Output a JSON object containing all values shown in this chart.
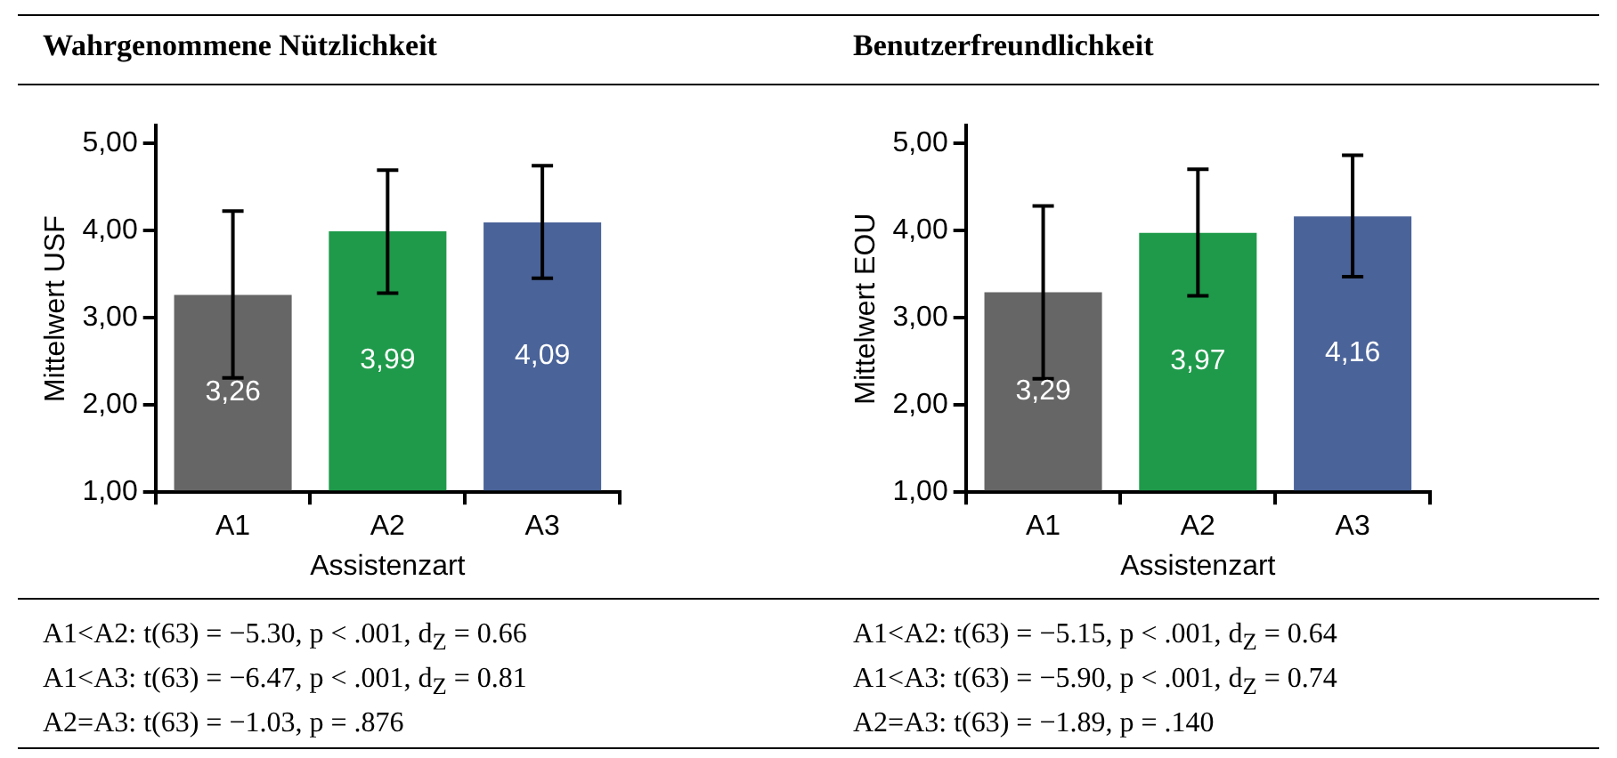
{
  "chart_data": [
    {
      "type": "bar",
      "title": "Wahrgenommene Nützlichkeit",
      "xlabel": "Assistenzart",
      "ylabel": "Mittelwert USF",
      "categories": [
        "A1",
        "A2",
        "A3"
      ],
      "values": [
        3.26,
        3.99,
        4.09
      ],
      "colors": [
        "#666666",
        "#1e9a4a",
        "#4a6399"
      ],
      "errors": [
        [
          2.31,
          4.22
        ],
        [
          3.28,
          4.69
        ],
        [
          3.45,
          4.74
        ]
      ],
      "value_labels": [
        "3,26",
        "3,99",
        "4,09"
      ],
      "ylim": [
        1,
        5.2
      ],
      "yticks": [
        {
          "value": 1,
          "label": "1,00"
        },
        {
          "value": 2,
          "label": "2,00"
        },
        {
          "value": 3,
          "label": "3,00"
        },
        {
          "value": 4,
          "label": "4,00"
        },
        {
          "value": 5,
          "label": "5,00"
        }
      ],
      "grid": false,
      "legend": false,
      "annotations": [
        "A1<A2: t(63) = −5.30, p < .001, d$_{Z}$ = 0.66",
        "A1<A3: t(63) = −6.47, p < .001, d$_{Z}$ = 0.81",
        "A2=A3: t(63) = −1.03, p = .876"
      ]
    },
    {
      "type": "bar",
      "title": "Benutzerfreundlichkeit",
      "xlabel": "Assistenzart",
      "ylabel": "Mittelwert EOU",
      "categories": [
        "A1",
        "A2",
        "A3"
      ],
      "values": [
        3.29,
        3.97,
        4.16
      ],
      "colors": [
        "#666666",
        "#1e9a4a",
        "#4a6399"
      ],
      "errors": [
        [
          2.3,
          4.28
        ],
        [
          3.25,
          4.7
        ],
        [
          3.47,
          4.86
        ]
      ],
      "value_labels": [
        "3,29",
        "3,97",
        "4,16"
      ],
      "ylim": [
        1,
        5.2
      ],
      "yticks": [
        {
          "value": 1,
          "label": "1,00"
        },
        {
          "value": 2,
          "label": "2,00"
        },
        {
          "value": 3,
          "label": "3,00"
        },
        {
          "value": 4,
          "label": "4,00"
        },
        {
          "value": 5,
          "label": "5,00"
        }
      ],
      "grid": false,
      "legend": false,
      "annotations": [
        "A1<A2: t(63) = −5.15, p < .001, d$_{Z}$ = 0.64",
        "A1<A3: t(63) = −5.90, p < .001, d$_{Z}$ = 0.74",
        "A2=A3: t(63) = −1.89, p = .140"
      ]
    }
  ]
}
